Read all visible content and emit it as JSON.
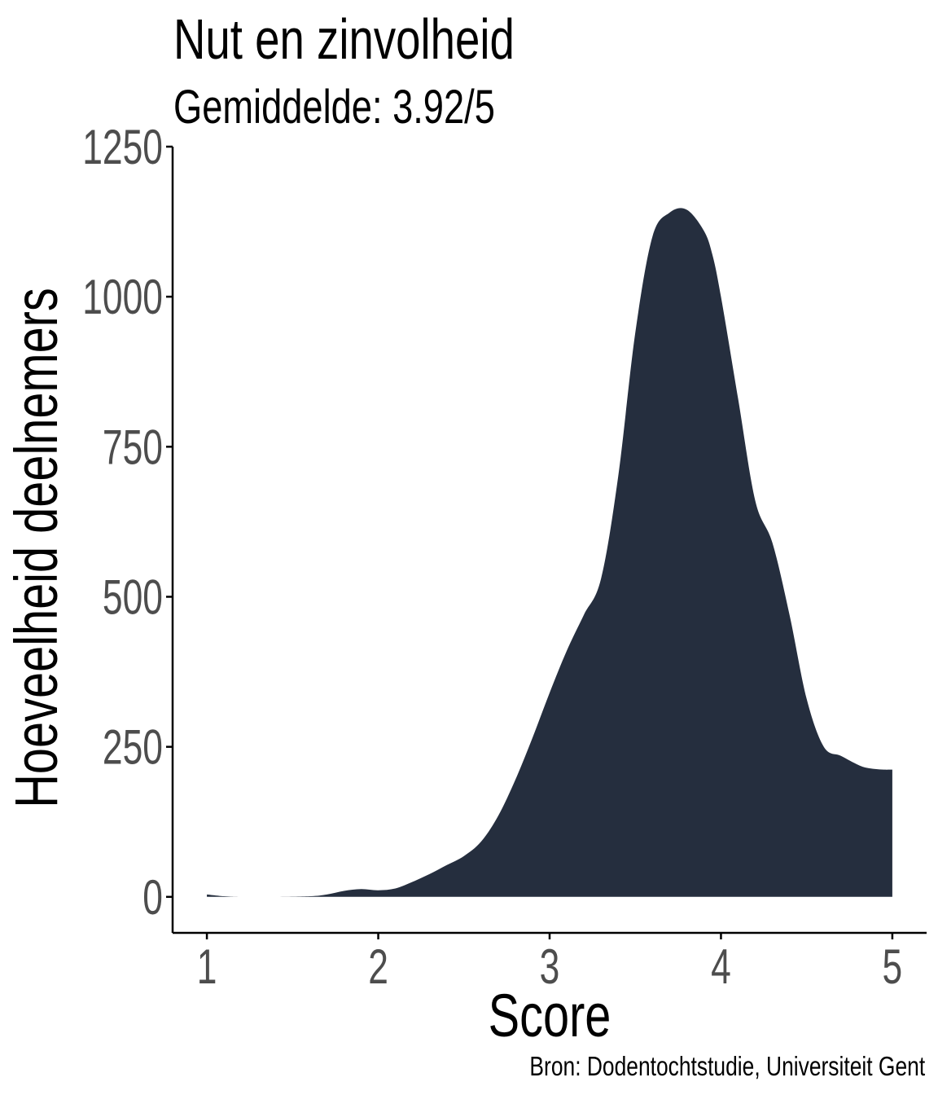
{
  "title": "Nut en zinvolheid",
  "subtitle": "Gemiddelde: 3.92/5",
  "caption": "Bron: Dodentochtstudie, Universiteit Gent",
  "colors": {
    "fill": "#252e3e",
    "axis": "#000000",
    "tick_text": "#4d4d4d"
  },
  "chart_data": {
    "type": "area",
    "title": "Nut en zinvolheid",
    "subtitle": "Gemiddelde: 3.92/5",
    "xlabel": "Score",
    "ylabel": "Hoeveelheid deelnemers",
    "xlim": [
      0.8,
      5.2
    ],
    "ylim": [
      -60,
      1250
    ],
    "x_ticks": [
      1,
      2,
      3,
      4,
      5
    ],
    "x_tick_labels": [
      "1",
      "2",
      "3",
      "4",
      "5"
    ],
    "y_ticks": [
      0,
      250,
      500,
      750,
      1000,
      1250
    ],
    "y_tick_labels": [
      "0",
      "250",
      "500",
      "750",
      "1000",
      "1250"
    ],
    "grid": false,
    "legend": "none",
    "x": [
      1.0,
      1.1,
      1.2,
      1.4,
      1.6,
      1.7,
      1.8,
      1.9,
      2.0,
      2.1,
      2.2,
      2.3,
      2.4,
      2.5,
      2.6,
      2.7,
      2.8,
      2.9,
      3.0,
      3.1,
      3.2,
      3.3,
      3.4,
      3.5,
      3.6,
      3.7,
      3.8,
      3.9,
      3.95,
      4.0,
      4.1,
      4.2,
      4.3,
      4.4,
      4.5,
      4.6,
      4.7,
      4.8,
      4.85,
      4.9,
      4.95,
      5.0
    ],
    "y": [
      4,
      1,
      0,
      0,
      1,
      4,
      10,
      13,
      11,
      14,
      25,
      38,
      53,
      68,
      92,
      135,
      195,
      265,
      340,
      410,
      470,
      530,
      700,
      940,
      1100,
      1140,
      1145,
      1110,
      1070,
      1000,
      830,
      660,
      590,
      470,
      330,
      250,
      235,
      220,
      215,
      213,
      212,
      212
    ]
  }
}
